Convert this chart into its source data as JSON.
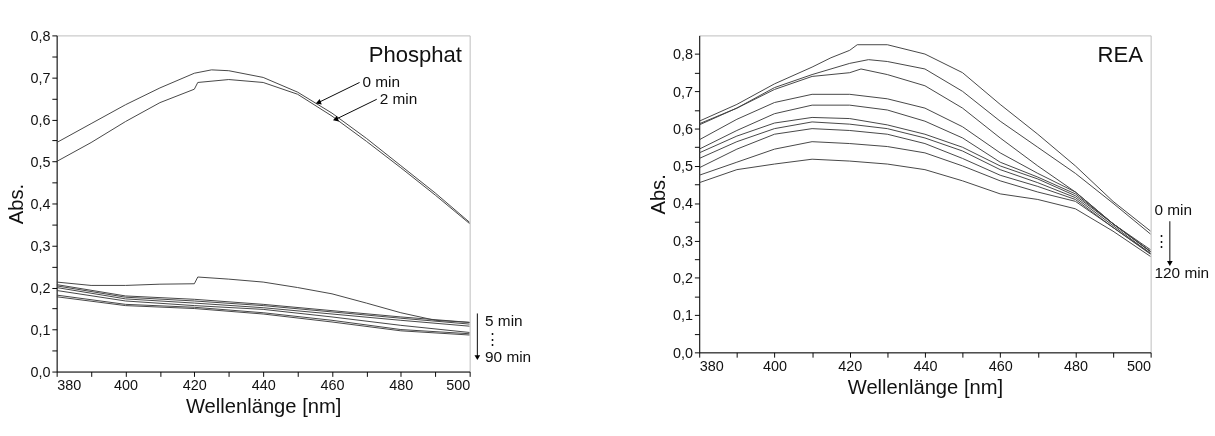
{
  "chart_data": [
    {
      "type": "line",
      "title": "Phosphat",
      "xlabel": "Wellenlänge [nm]",
      "ylabel": "Abs.",
      "xlim": [
        380,
        500
      ],
      "ylim": [
        0,
        0.8
      ],
      "xticks": [
        380,
        {
          "value": 390,
          "label": null
        },
        400,
        {
          "value": 410,
          "label": null
        },
        420,
        {
          "value": 430,
          "label": null
        },
        440,
        {
          "value": 450,
          "label": null
        },
        460,
        {
          "value": 470,
          "label": null
        },
        480,
        {
          "value": 490,
          "label": null
        },
        500
      ],
      "yticks": [
        {
          "value": 0,
          "label": "0,0"
        },
        {
          "value": 0.05,
          "label": null
        },
        {
          "value": 0.1,
          "label": "0,1"
        },
        {
          "value": 0.15,
          "label": null
        },
        {
          "value": 0.2,
          "label": "0,2"
        },
        {
          "value": 0.25,
          "label": null
        },
        {
          "value": 0.3,
          "label": "0,3"
        },
        {
          "value": 0.35,
          "label": null
        },
        {
          "value": 0.4,
          "label": "0,4"
        },
        {
          "value": 0.45,
          "label": null
        },
        {
          "value": 0.5,
          "label": "0,5"
        },
        {
          "value": 0.55,
          "label": null
        },
        {
          "value": 0.6,
          "label": "0,6"
        },
        {
          "value": 0.65,
          "label": null
        },
        {
          "value": 0.7,
          "label": "0,7"
        },
        {
          "value": 0.75,
          "label": null
        },
        {
          "value": 0.8,
          "label": "0,8"
        }
      ],
      "series": [
        {
          "color": "#404040",
          "x": [
            380,
            390,
            400,
            410,
            420,
            425,
            430,
            440,
            450,
            460,
            470,
            480,
            490,
            500
          ],
          "values": [
            0.545,
            0.59,
            0.635,
            0.675,
            0.71,
            0.718,
            0.716,
            0.7,
            0.665,
            0.615,
            0.555,
            0.49,
            0.425,
            0.355
          ]
        },
        {
          "color": "#404040",
          "x": [
            380,
            390,
            400,
            410,
            420,
            421,
            430,
            440,
            450,
            460,
            470,
            480,
            490,
            500
          ],
          "values": [
            0.5,
            0.545,
            0.595,
            0.64,
            0.672,
            0.688,
            0.695,
            0.688,
            0.66,
            0.608,
            0.548,
            0.485,
            0.42,
            0.352
          ]
        },
        {
          "color": "#404040",
          "x": [
            380,
            390,
            400,
            410,
            420,
            421,
            430,
            440,
            450,
            460,
            470,
            480,
            490,
            500
          ],
          "values": [
            0.213,
            0.205,
            0.205,
            0.208,
            0.209,
            0.225,
            0.22,
            0.213,
            0.2,
            0.185,
            0.163,
            0.14,
            0.122,
            0.117
          ]
        },
        {
          "color": "#404040",
          "x": [
            380,
            400,
            420,
            440,
            460,
            480,
            500
          ],
          "values": [
            0.207,
            0.18,
            0.172,
            0.16,
            0.145,
            0.13,
            0.117
          ]
        },
        {
          "color": "#404040",
          "x": [
            380,
            400,
            420,
            440,
            460,
            480,
            500
          ],
          "values": [
            0.204,
            0.177,
            0.168,
            0.157,
            0.142,
            0.127,
            0.113
          ]
        },
        {
          "color": "#404040",
          "x": [
            380,
            400,
            420,
            440,
            460,
            480,
            500
          ],
          "values": [
            0.2,
            0.173,
            0.163,
            0.152,
            0.137,
            0.122,
            0.108
          ]
        },
        {
          "color": "#404040",
          "x": [
            380,
            400,
            420,
            440,
            460,
            480,
            500
          ],
          "values": [
            0.193,
            0.168,
            0.157,
            0.148,
            0.13,
            0.11,
            0.093
          ]
        },
        {
          "color": "#404040",
          "x": [
            380,
            400,
            420,
            440,
            460,
            480,
            500
          ],
          "values": [
            0.182,
            0.16,
            0.153,
            0.14,
            0.122,
            0.1,
            0.09
          ]
        },
        {
          "color": "#404040",
          "x": [
            380,
            400,
            420,
            440,
            460,
            480,
            500
          ],
          "values": [
            0.178,
            0.157,
            0.15,
            0.137,
            0.118,
            0.097,
            0.087
          ]
        }
      ],
      "annotations": [
        {
          "text": "0 min",
          "x": 456,
          "y": 0.64
        },
        {
          "text": "2 min",
          "x": 461,
          "y": 0.6
        },
        "5 min",
        "⋮",
        "90 min"
      ]
    },
    {
      "type": "line",
      "title": "REA",
      "xlabel": "Wellenlänge [nm]",
      "ylabel": "Abs.",
      "xlim": [
        380,
        500
      ],
      "ylim": [
        0,
        0.85
      ],
      "xticks": [
        380,
        {
          "value": 390,
          "label": null
        },
        400,
        {
          "value": 410,
          "label": null
        },
        420,
        {
          "value": 430,
          "label": null
        },
        440,
        {
          "value": 450,
          "label": null
        },
        460,
        {
          "value": 470,
          "label": null
        },
        480,
        {
          "value": 490,
          "label": null
        },
        500
      ],
      "yticks": [
        {
          "value": 0,
          "label": "0,0"
        },
        {
          "value": 0.05,
          "label": null
        },
        {
          "value": 0.1,
          "label": "0,1"
        },
        {
          "value": 0.15,
          "label": null
        },
        {
          "value": 0.2,
          "label": "0,2"
        },
        {
          "value": 0.25,
          "label": null
        },
        {
          "value": 0.3,
          "label": "0,3"
        },
        {
          "value": 0.35,
          "label": null
        },
        {
          "value": 0.4,
          "label": "0,4"
        },
        {
          "value": 0.45,
          "label": null
        },
        {
          "value": 0.5,
          "label": "0,5"
        },
        {
          "value": 0.55,
          "label": null
        },
        {
          "value": 0.6,
          "label": "0,6"
        },
        {
          "value": 0.65,
          "label": null
        },
        {
          "value": 0.7,
          "label": "0,7"
        },
        {
          "value": 0.75,
          "label": null
        },
        {
          "value": 0.8,
          "label": "0,8"
        }
      ],
      "series": [
        {
          "color": "#404040",
          "x": [
            380,
            390,
            400,
            410,
            415,
            420,
            422,
            430,
            440,
            450,
            460,
            470,
            480,
            490,
            500
          ],
          "values": [
            0.62,
            0.665,
            0.72,
            0.765,
            0.79,
            0.81,
            0.825,
            0.825,
            0.8,
            0.75,
            0.665,
            0.585,
            0.5,
            0.405,
            0.325
          ]
        },
        {
          "color": "#404040",
          "x": [
            380,
            390,
            400,
            410,
            420,
            425,
            430,
            440,
            450,
            460,
            470,
            480,
            490,
            500
          ],
          "values": [
            0.613,
            0.655,
            0.71,
            0.745,
            0.775,
            0.785,
            0.78,
            0.76,
            0.7,
            0.62,
            0.55,
            0.48,
            0.4,
            0.317
          ]
        },
        {
          "color": "#404040",
          "x": [
            380,
            390,
            400,
            410,
            420,
            423,
            430,
            440,
            450,
            460,
            470,
            480,
            490,
            500
          ],
          "values": [
            0.61,
            0.655,
            0.705,
            0.74,
            0.75,
            0.76,
            0.745,
            0.715,
            0.655,
            0.575,
            0.5,
            0.43,
            0.345,
            0.275
          ]
        },
        {
          "color": "#404040",
          "x": [
            380,
            390,
            400,
            410,
            420,
            430,
            440,
            450,
            460,
            470,
            480,
            490,
            500
          ],
          "values": [
            0.57,
            0.625,
            0.67,
            0.692,
            0.692,
            0.68,
            0.655,
            0.605,
            0.535,
            0.48,
            0.43,
            0.345,
            0.27
          ]
        },
        {
          "color": "#404040",
          "x": [
            380,
            390,
            400,
            410,
            420,
            430,
            440,
            450,
            460,
            470,
            480,
            490,
            500
          ],
          "values": [
            0.545,
            0.595,
            0.64,
            0.663,
            0.663,
            0.65,
            0.62,
            0.575,
            0.51,
            0.47,
            0.425,
            0.345,
            0.27
          ]
        },
        {
          "color": "#404040",
          "x": [
            380,
            390,
            400,
            410,
            420,
            430,
            440,
            450,
            460,
            470,
            480,
            490,
            500
          ],
          "values": [
            0.535,
            0.58,
            0.615,
            0.63,
            0.627,
            0.61,
            0.585,
            0.55,
            0.5,
            0.465,
            0.42,
            0.345,
            0.27
          ]
        },
        {
          "color": "#404040",
          "x": [
            380,
            390,
            400,
            410,
            420,
            430,
            440,
            450,
            460,
            470,
            480,
            490,
            500
          ],
          "values": [
            0.52,
            0.565,
            0.6,
            0.618,
            0.612,
            0.6,
            0.575,
            0.54,
            0.49,
            0.455,
            0.415,
            0.34,
            0.265
          ]
        },
        {
          "color": "#404040",
          "x": [
            380,
            390,
            400,
            410,
            420,
            430,
            440,
            450,
            460,
            470,
            480,
            490,
            500
          ],
          "values": [
            0.495,
            0.545,
            0.585,
            0.6,
            0.595,
            0.585,
            0.56,
            0.52,
            0.475,
            0.445,
            0.41,
            0.335,
            0.265
          ]
        },
        {
          "color": "#404040",
          "x": [
            380,
            390,
            400,
            410,
            420,
            430,
            440,
            450,
            460,
            470,
            480,
            490,
            500
          ],
          "values": [
            0.475,
            0.51,
            0.545,
            0.565,
            0.56,
            0.552,
            0.535,
            0.5,
            0.46,
            0.43,
            0.405,
            0.335,
            0.263
          ]
        },
        {
          "color": "#404040",
          "x": [
            380,
            390,
            400,
            410,
            420,
            430,
            440,
            450,
            460,
            470,
            480,
            490,
            500
          ],
          "values": [
            0.455,
            0.49,
            0.505,
            0.518,
            0.513,
            0.505,
            0.49,
            0.46,
            0.425,
            0.41,
            0.385,
            0.325,
            0.257
          ]
        }
      ],
      "annotations": [
        "0 min",
        "⋮",
        "120 min"
      ]
    }
  ]
}
